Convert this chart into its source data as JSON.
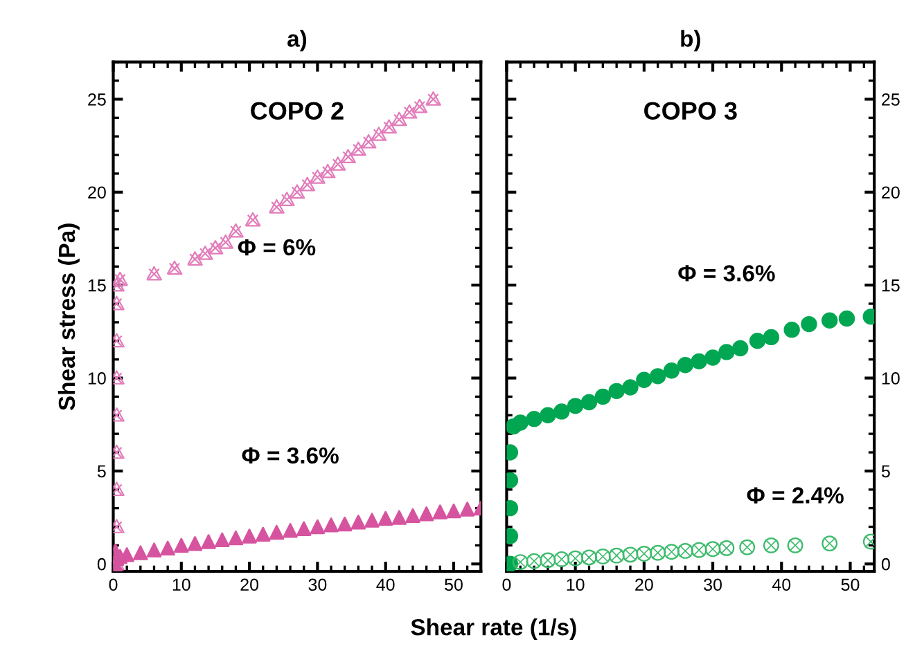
{
  "chart_data": [
    {
      "type": "scatter",
      "title": "a)",
      "ylabel": "Shear stress (Pa)",
      "xlabel": "Shear rate (1/s)",
      "xlim": [
        0,
        54
      ],
      "ylim": [
        -0.4,
        27
      ],
      "xticks": [
        0,
        10,
        20,
        30,
        40,
        50
      ],
      "yticks": [
        0,
        5,
        10,
        15,
        20,
        25
      ],
      "annotations": [
        "COPO 2"
      ],
      "series": [
        {
          "name": "Φ = 6%",
          "color": "#e27cba",
          "marker": "cross",
          "x": [
            0.5,
            0.5,
            0.5,
            0.5,
            0.5,
            0.5,
            0.5,
            0.5,
            0.5,
            1,
            6,
            9,
            12,
            13.5,
            15,
            16.5,
            18,
            20.5,
            24,
            25.5,
            27,
            28.5,
            30,
            31.5,
            33,
            34.5,
            36,
            37.5,
            39,
            40.5,
            42,
            43.5,
            45,
            47
          ],
          "values": [
            0,
            2,
            4,
            6,
            8,
            10,
            12,
            14,
            15,
            15.3,
            15.6,
            15.9,
            16.4,
            16.7,
            17,
            17.3,
            17.9,
            18.5,
            19.2,
            19.6,
            20,
            20.4,
            20.8,
            21.1,
            21.5,
            21.9,
            22.3,
            22.7,
            23.1,
            23.5,
            23.9,
            24.3,
            24.6,
            25
          ]
        },
        {
          "name": "Φ = 3.6%",
          "color": "#d6549f",
          "marker": "triangle_filled",
          "x": [
            0.3,
            0.3,
            0.5,
            1,
            2,
            4,
            6,
            8,
            10,
            12,
            14,
            16,
            18,
            20,
            22,
            24,
            26,
            28,
            30,
            32,
            34,
            36,
            38,
            40,
            42,
            44,
            46,
            48,
            50,
            52,
            54
          ],
          "values": [
            0,
            0.7,
            0.3,
            0.4,
            0.5,
            0.6,
            0.75,
            0.85,
            1,
            1.1,
            1.2,
            1.3,
            1.4,
            1.5,
            1.6,
            1.7,
            1.8,
            1.9,
            2,
            2.1,
            2.15,
            2.25,
            2.35,
            2.45,
            2.5,
            2.6,
            2.7,
            2.8,
            2.85,
            2.95,
            3
          ]
        }
      ]
    },
    {
      "type": "scatter",
      "title": "b)",
      "xlim": [
        0,
        53.5
      ],
      "ylim": [
        -0.4,
        27
      ],
      "xticks": [
        0,
        10,
        20,
        30,
        40,
        50
      ],
      "yticks": [
        0,
        5,
        10,
        15,
        20,
        25
      ],
      "annotations": [
        "COPO 3"
      ],
      "series": [
        {
          "name": "Φ = 3.6%",
          "color": "#00a651",
          "marker": "circle_filled",
          "x": [
            0.5,
            0.5,
            0.5,
            0.5,
            0.5,
            1,
            2,
            4,
            6,
            8,
            10,
            12,
            14,
            16,
            18,
            20,
            22,
            24,
            26,
            28,
            30,
            32,
            34,
            36.5,
            38.5,
            41.5,
            44,
            47,
            49.5,
            53
          ],
          "values": [
            0,
            1.5,
            3,
            4.5,
            6,
            7.4,
            7.6,
            7.8,
            8,
            8.2,
            8.5,
            8.7,
            9,
            9.3,
            9.5,
            9.9,
            10.1,
            10.4,
            10.7,
            10.9,
            11.1,
            11.4,
            11.6,
            12,
            12.2,
            12.6,
            12.9,
            13.1,
            13.2,
            13.3
          ]
        },
        {
          "name": "Φ = 2.4%",
          "color": "#3dbb6c",
          "marker": "circle",
          "x": [
            2,
            4,
            6,
            8,
            10,
            12,
            14,
            16,
            18,
            20,
            22,
            24,
            26,
            28,
            30,
            32,
            35,
            38.5,
            42,
            47,
            53
          ],
          "values": [
            0.1,
            0.15,
            0.2,
            0.25,
            0.3,
            0.35,
            0.4,
            0.45,
            0.5,
            0.55,
            0.6,
            0.65,
            0.7,
            0.75,
            0.8,
            0.85,
            0.9,
            1,
            1,
            1.1,
            1.2
          ]
        }
      ]
    }
  ]
}
